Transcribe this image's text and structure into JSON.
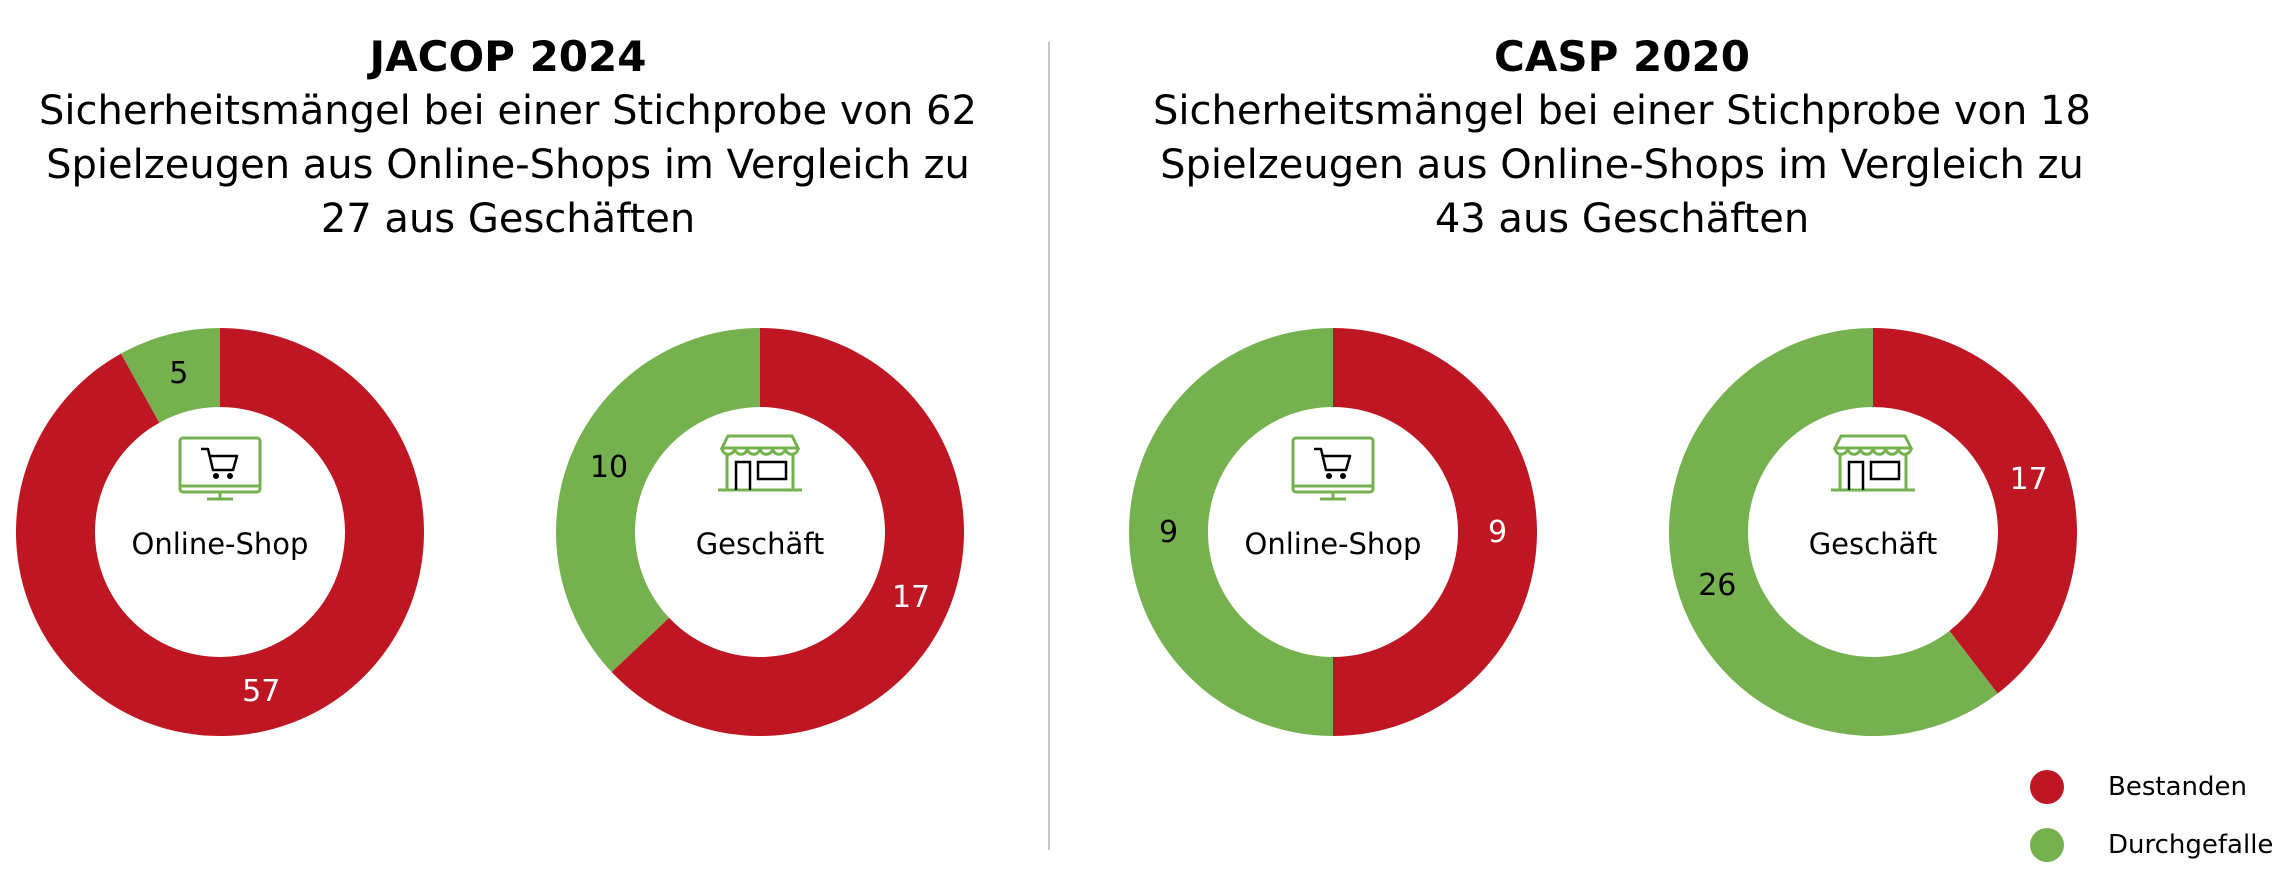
{
  "colors": {
    "passed": "#be1622",
    "failed": "#76b14f"
  },
  "panels": [
    {
      "heading": "JACOP 2024",
      "subtitle_lines": [
        "Sicherheitsmängel bei einer Stichprobe von 62",
        "Spielzeugen aus Online-Shops im Vergleich zu",
        "27 aus Geschäften"
      ]
    },
    {
      "heading": "CASP 2020",
      "subtitle_lines": [
        "Sicherheitsmängel bei einer Stichprobe von 18",
        "Spielzeugen aus Online-Shops im Vergleich zu",
        "43 aus Geschäften"
      ]
    }
  ],
  "legend": [
    {
      "label": "Bestanden",
      "color": "#be1622"
    },
    {
      "label": "Durchgefallen",
      "color": "#76b14f"
    }
  ],
  "chart_data": [
    {
      "type": "pie",
      "panel": "JACOP 2024",
      "center_label": "Online-Shop",
      "icon": "shopping-cart-monitor-icon",
      "categories": [
        "Bestanden",
        "Durchgefallen"
      ],
      "values": [
        57,
        5
      ]
    },
    {
      "type": "pie",
      "panel": "JACOP 2024",
      "center_label": "Geschäft",
      "icon": "shop-storefront-icon",
      "categories": [
        "Bestanden",
        "Durchgefallen"
      ],
      "values": [
        17,
        10
      ]
    },
    {
      "type": "pie",
      "panel": "CASP 2020",
      "center_label": "Online-Shop",
      "icon": "shopping-cart-monitor-icon",
      "categories": [
        "Bestanden",
        "Durchgefallen"
      ],
      "values": [
        9,
        9
      ]
    },
    {
      "type": "pie",
      "panel": "CASP 2020",
      "center_label": "Geschäft",
      "icon": "shop-storefront-icon",
      "categories": [
        "Bestanden",
        "Durchgefallen"
      ],
      "values": [
        17,
        26
      ]
    }
  ]
}
